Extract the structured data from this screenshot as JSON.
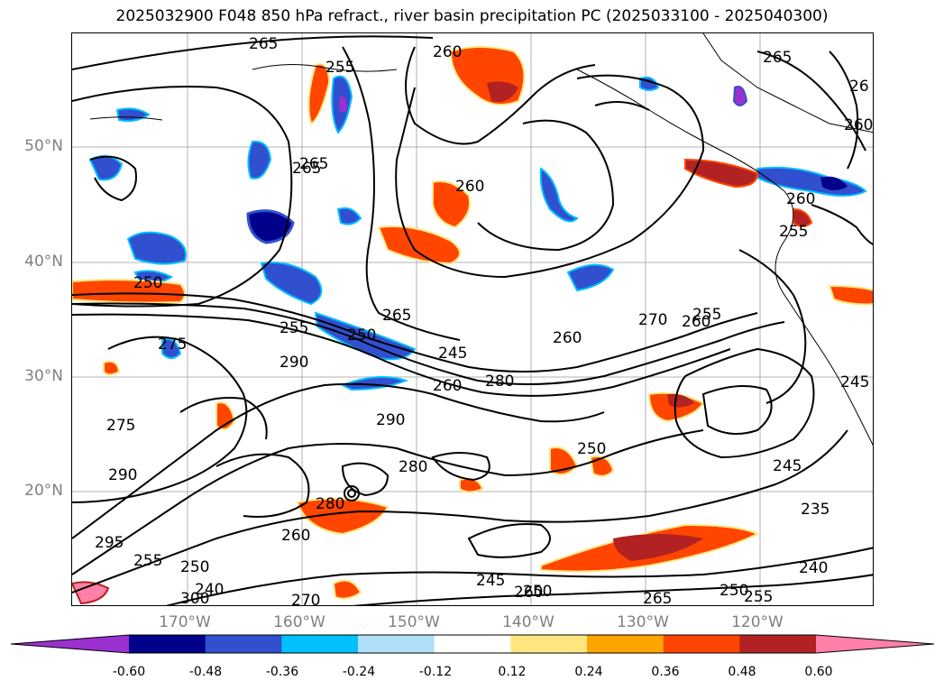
{
  "title": "2025032900 F048 850 hPa refract., river basin precipitation PC (2025033100 - 2025040300)",
  "lat_labels": [
    "50°N",
    "40°N",
    "30°N",
    "20°N"
  ],
  "lon_labels": [
    "170°W",
    "160°W",
    "150°W",
    "140°W",
    "130°W",
    "120°W"
  ],
  "contour_labels": [
    "265",
    "260",
    "255",
    "265",
    "260",
    "265",
    "260",
    "26",
    "260",
    "250",
    "255",
    "265",
    "260",
    "270",
    "255",
    "260",
    "250",
    "245",
    "255",
    "275",
    "290",
    "280",
    "265",
    "290",
    "275",
    "280",
    "250",
    "245",
    "260",
    "290",
    "260",
    "235",
    "295",
    "250",
    "255",
    "240",
    "300",
    "245",
    "260",
    "280",
    "250",
    "265",
    "270",
    "240",
    "245",
    "250",
    "255"
  ],
  "colorbar": {
    "tick_labels": [
      "-0.60",
      "-0.48",
      "-0.36",
      "-0.24",
      "-0.12",
      "0.12",
      "0.24",
      "0.36",
      "0.48",
      "0.60"
    ],
    "colors": [
      "#9b30d0",
      "#00008b",
      "#3050d0",
      "#00bfff",
      "#b0e0f8",
      "#ffffff",
      "#ffe680",
      "#ffa500",
      "#ff4500",
      "#b22222",
      "#ff80a8"
    ]
  }
}
